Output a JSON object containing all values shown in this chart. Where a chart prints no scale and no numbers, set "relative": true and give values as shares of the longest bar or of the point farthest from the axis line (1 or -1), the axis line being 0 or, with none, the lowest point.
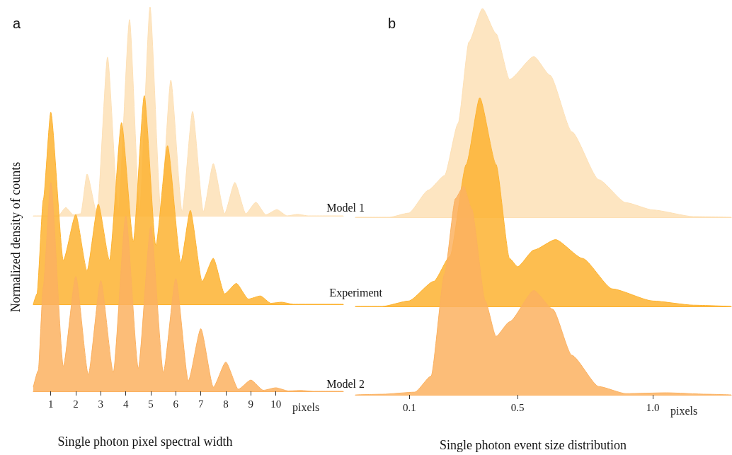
{
  "chart_data": [
    {
      "type": "area",
      "relative": true,
      "annotations": [
        "a"
      ],
      "tick_labels": false,
      "xlim": [
        0.3,
        12.7
      ],
      "x": [
        0.3,
        1.3,
        1.6,
        1.9,
        2.2,
        2.45,
        2.85,
        3.27,
        3.7,
        4.15,
        4.55,
        4.97,
        5.4,
        5.8,
        6.25,
        6.67,
        7.1,
        7.5,
        7.95,
        8.36,
        8.8,
        9.2,
        9.6,
        10.04,
        10.45,
        10.87,
        11.3,
        12.7
      ],
      "series": [
        {
          "name": "Model 1",
          "color": "#fde0b6",
          "values": [
            0,
            0,
            0.04,
            0.005,
            0.01,
            0.2,
            0.01,
            0.76,
            0.02,
            0.94,
            0.02,
            1,
            0.02,
            0.65,
            0.02,
            0.5,
            0.02,
            0.25,
            0.01,
            0.16,
            0.01,
            0.065,
            0.005,
            0.03,
            0,
            0.007,
            0,
            0
          ]
        }
      ]
    },
    {
      "type": "area",
      "relative": true,
      "ylabel": "Normalized density of counts",
      "tick_labels": false,
      "xlim": [
        0.3,
        12.7
      ],
      "x": [
        0.3,
        0.45,
        0.7,
        1.0,
        1.5,
        2.0,
        2.45,
        2.9,
        3.35,
        3.83,
        4.3,
        4.74,
        5.2,
        5.67,
        6.2,
        6.58,
        7.05,
        7.5,
        7.95,
        8.42,
        8.9,
        9.38,
        9.8,
        10.23,
        10.7,
        12.7
      ],
      "series": [
        {
          "name": "Experiment",
          "color": "#fdb331",
          "values": [
            0,
            0.05,
            0.5,
            0.92,
            0.21,
            0.43,
            0.16,
            0.48,
            0.21,
            0.87,
            0.3,
            1,
            0.28,
            0.76,
            0.2,
            0.45,
            0.11,
            0.22,
            0.05,
            0.1,
            0.025,
            0.04,
            0.005,
            0.01,
            0,
            0
          ]
        }
      ]
    },
    {
      "type": "area",
      "relative": true,
      "title": "Single photon pixel spectral width",
      "xlabel": "pixels",
      "tick_labels": "x",
      "xlim": [
        0.3,
        12.7
      ],
      "xticks": [
        1,
        2,
        3,
        4,
        5,
        6,
        7,
        8,
        9,
        10
      ],
      "x": [
        0.3,
        0.5,
        0.7,
        1.0,
        1.5,
        2.0,
        2.5,
        3.0,
        3.5,
        4.0,
        4.5,
        5.0,
        5.5,
        6.0,
        6.5,
        7.0,
        7.5,
        8.0,
        8.5,
        9.0,
        9.5,
        10.0,
        10.5,
        11.0,
        11.5,
        12.7
      ],
      "series": [
        {
          "name": "Model 2",
          "color": "#fbb160",
          "values": [
            0.02,
            0.1,
            0.5,
            1,
            0.12,
            0.55,
            0.08,
            0.53,
            0.09,
            0.84,
            0.11,
            0.79,
            0.09,
            0.54,
            0.05,
            0.3,
            0.02,
            0.14,
            0.01,
            0.054,
            0.005,
            0.017,
            0.002,
            0.004,
            0,
            0
          ]
        }
      ]
    },
    {
      "type": "area",
      "relative": true,
      "annotations": [
        "b"
      ],
      "tick_labels": false,
      "xlim": [
        -0.1,
        1.29
      ],
      "x": [
        -0.1,
        0.026,
        0.097,
        0.17,
        0.23,
        0.28,
        0.32,
        0.37,
        0.42,
        0.47,
        0.56,
        0.62,
        0.7,
        0.8,
        0.9,
        1.0,
        1.15,
        1.29
      ],
      "series": [
        {
          "color": "#fde0b6",
          "values": [
            0,
            0,
            0.02,
            0.13,
            0.2,
            0.45,
            0.84,
            1,
            0.88,
            0.66,
            0.77,
            0.68,
            0.41,
            0.18,
            0.07,
            0.035,
            0.003,
            0
          ]
        }
      ]
    },
    {
      "type": "area",
      "relative": true,
      "tick_labels": false,
      "xlim": [
        -0.1,
        1.29
      ],
      "x": [
        -0.1,
        0,
        0.097,
        0.19,
        0.25,
        0.31,
        0.36,
        0.42,
        0.47,
        0.5,
        0.56,
        0.64,
        0.74,
        0.85,
        1.0,
        1.15,
        1.29
      ],
      "series": [
        {
          "color": "#fdb331",
          "values": [
            0,
            0,
            0.026,
            0.12,
            0.24,
            0.68,
            1,
            0.68,
            0.23,
            0.19,
            0.27,
            0.32,
            0.23,
            0.084,
            0.026,
            0.006,
            0
          ]
        }
      ]
    },
    {
      "type": "area",
      "relative": true,
      "title": "Single photon event size distribution",
      "xlabel": "pixels",
      "tick_labels": "x",
      "xlim": [
        -0.1,
        1.29
      ],
      "xticks": [
        0.1,
        0.5,
        {
          "value": 1,
          "label": "1.0"
        }
      ],
      "x": [
        -0.1,
        0,
        0.12,
        0.18,
        0.23,
        0.27,
        0.3,
        0.33,
        0.38,
        0.42,
        0.47,
        0.56,
        0.63,
        0.7,
        0.8,
        0.9,
        1.05,
        1.2,
        1.29
      ],
      "series": [
        {
          "color": "#fbb160",
          "values": [
            0,
            0.003,
            0.013,
            0.09,
            0.58,
            0.94,
            1,
            0.89,
            0.45,
            0.28,
            0.35,
            0.5,
            0.41,
            0.19,
            0.04,
            0.006,
            0.01,
            0.003,
            0
          ]
        }
      ]
    }
  ]
}
